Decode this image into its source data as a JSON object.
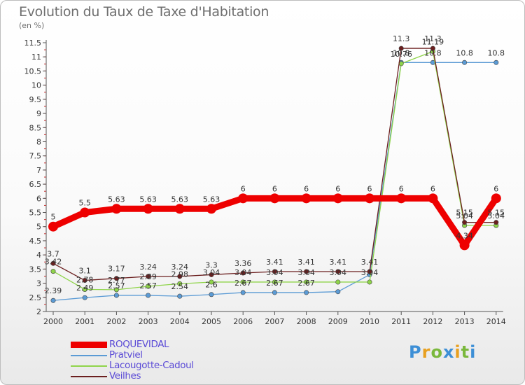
{
  "title": "Evolution du Taux de Taxe d'Habitation",
  "unit_label": "(en %)",
  "logo_text": "Proxiti",
  "chart_data": {
    "type": "line",
    "title": "Evolution du Taux de Taxe d'Habitation",
    "ylabel": "(en %)",
    "x": [
      "2000",
      "2001",
      "2002",
      "2003",
      "2004",
      "2005",
      "2006",
      "2007",
      "2008",
      "2009",
      "2010",
      "2011",
      "2012",
      "2013",
      "2014"
    ],
    "yticks": [
      "2",
      "2.5",
      "3",
      "3.5",
      "4",
      "4.5",
      "5",
      "5.5",
      "6",
      "6.5",
      "7",
      "7.5",
      "8",
      "8.5",
      "9",
      "9.5",
      "10",
      "10.5",
      "11",
      "11.5"
    ],
    "ylim": [
      2,
      11.5
    ],
    "grid": false,
    "legend_position": "bottom-left",
    "series": [
      {
        "name": "ROQUEVIDAL",
        "color": "#ee0000",
        "values": [
          5,
          5.5,
          5.63,
          5.63,
          5.63,
          5.63,
          6,
          6,
          6,
          6,
          6,
          6,
          6,
          4.34,
          6
        ],
        "labels": [
          "5",
          "5.5",
          "5.63",
          "5.63",
          "5.63",
          "5.63",
          "6",
          "6",
          "6",
          "6",
          "6",
          "6",
          "6",
          "4.34",
          "6"
        ]
      },
      {
        "name": "Pratviel",
        "color": "#5b9bd5",
        "values": [
          2.39,
          2.49,
          2.57,
          2.57,
          2.54,
          2.6,
          2.67,
          2.67,
          2.67,
          2.7,
          3.3,
          10.8,
          10.8,
          10.8,
          10.8
        ],
        "labels": [
          "2.39",
          "2.49",
          "2.57",
          "2.57",
          "2.54",
          "2.6",
          "2.67",
          "2.67",
          "2.67",
          "",
          "",
          "10.8",
          "10.8",
          "10.8",
          "10.8"
        ]
      },
      {
        "name": "Lacougotte-Cadoul",
        "color": "#8fd44a",
        "values": [
          3.42,
          2.78,
          2.77,
          2.89,
          2.98,
          3.04,
          3.04,
          3.04,
          3.04,
          3.04,
          3.04,
          10.76,
          11.19,
          5.04,
          5.04
        ],
        "labels": [
          "3.42",
          "2.78",
          "2.77",
          "2.89",
          "2.98",
          "3.04",
          "3.04",
          "3.04",
          "3.04",
          "3.04",
          "3.04",
          "10.76",
          "11.19",
          "5.04",
          "5.04"
        ]
      },
      {
        "name": "Veilhes",
        "color": "#6b1f1f",
        "values": [
          3.7,
          3.1,
          3.17,
          3.24,
          3.24,
          3.3,
          3.36,
          3.41,
          3.41,
          3.41,
          3.41,
          11.3,
          11.3,
          5.15,
          5.15
        ],
        "labels": [
          "3.7",
          "3.1",
          "3.17",
          "3.24",
          "3.24",
          "3.3",
          "3.36",
          "3.41",
          "3.41",
          "3.41",
          "3.41",
          "11.3",
          "11.3",
          "5.15",
          "5.15"
        ]
      }
    ]
  }
}
